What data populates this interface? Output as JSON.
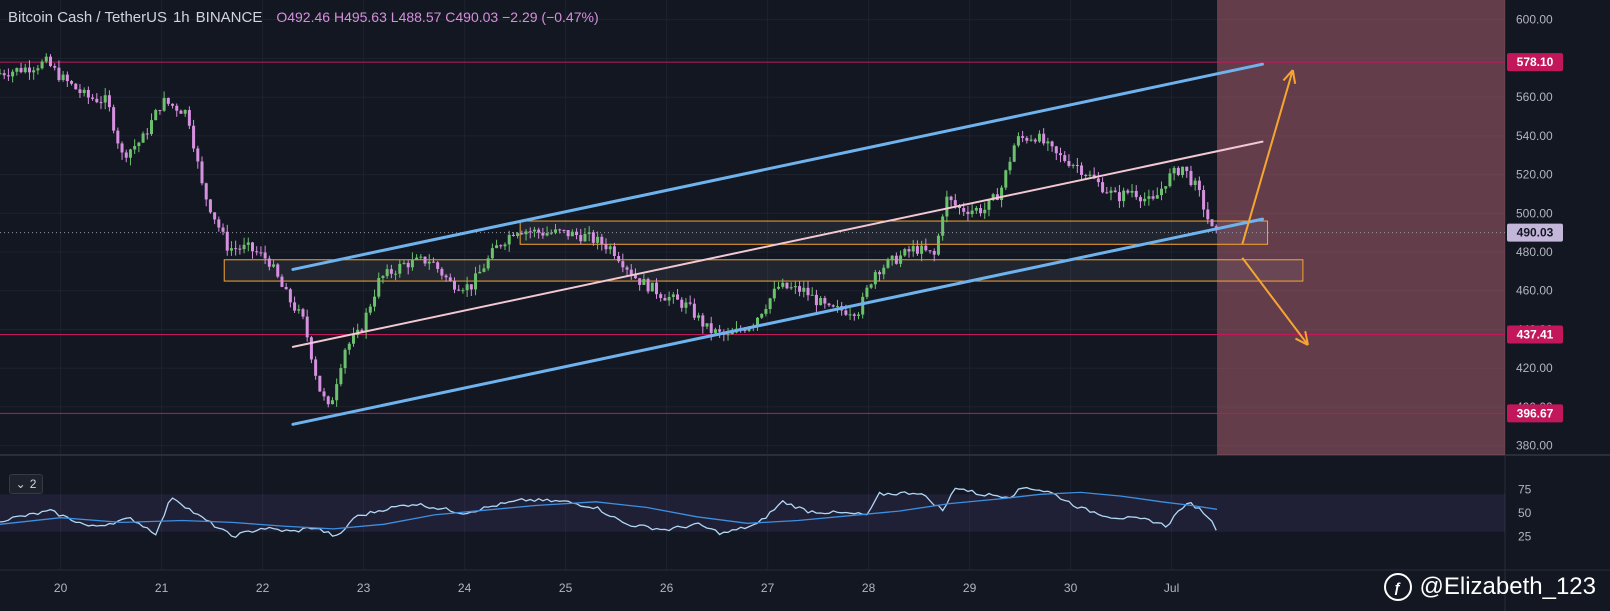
{
  "header": {
    "symbol": "Bitcoin Cash / TetherUS",
    "interval": "1h",
    "exchange": "BINANCE",
    "open": "O492.46",
    "high": "H495.63",
    "low": "L488.57",
    "close": "C490.03",
    "change": "−2.29 (−0.47%)"
  },
  "indicator_tag": {
    "label": "2"
  },
  "watermark": {
    "text": "@Elizabeth_123"
  },
  "colors": {
    "background": "#131722",
    "candle_up": "#6cc26c",
    "candle_down": "#d690e0",
    "channel": "#6fb3ee",
    "midline": "#f2c8d2",
    "levels": "#c2185b",
    "zone_border": "#f7a531",
    "arrows": "#f7a531",
    "highlight_zone": "#a85d6e",
    "rsi": "#b0d8f5",
    "rsi_ma": "#3d8fe0"
  },
  "chart_data": {
    "type": "candlestick",
    "ylim": [
      370,
      605
    ],
    "y_ticks": [
      "600.00",
      "580.00",
      "560.00",
      "540.00",
      "520.00",
      "500.00",
      "480.00",
      "460.00",
      "440.00",
      "420.00",
      "400.00",
      "380.00"
    ],
    "x_ticks": [
      "20",
      "21",
      "22",
      "23",
      "24",
      "25",
      "26",
      "27",
      "28",
      "29",
      "30",
      "Jul"
    ],
    "price_path": [
      [
        19.4,
        572
      ],
      [
        19.7,
        575
      ],
      [
        19.9,
        578
      ],
      [
        20.05,
        570
      ],
      [
        20.3,
        560
      ],
      [
        20.5,
        558
      ],
      [
        20.65,
        530
      ],
      [
        20.85,
        538
      ],
      [
        21.05,
        558
      ],
      [
        21.3,
        552
      ],
      [
        21.45,
        512
      ],
      [
        21.7,
        482
      ],
      [
        21.9,
        482
      ],
      [
        22.1,
        476
      ],
      [
        22.25,
        460
      ],
      [
        22.45,
        444
      ],
      [
        22.6,
        410
      ],
      [
        22.7,
        398
      ],
      [
        22.85,
        430
      ],
      [
        23.0,
        438
      ],
      [
        23.2,
        466
      ],
      [
        23.45,
        474
      ],
      [
        23.7,
        476
      ],
      [
        23.9,
        464
      ],
      [
        24.1,
        462
      ],
      [
        24.35,
        482
      ],
      [
        24.55,
        492
      ],
      [
        24.8,
        490
      ],
      [
        25.0,
        490
      ],
      [
        25.25,
        488
      ],
      [
        25.5,
        482
      ],
      [
        25.75,
        466
      ],
      [
        26.0,
        458
      ],
      [
        26.25,
        452
      ],
      [
        26.45,
        440
      ],
      [
        26.65,
        436
      ],
      [
        26.9,
        444
      ],
      [
        27.15,
        462
      ],
      [
        27.4,
        460
      ],
      [
        27.65,
        450
      ],
      [
        27.95,
        450
      ],
      [
        28.1,
        470
      ],
      [
        28.3,
        476
      ],
      [
        28.5,
        482
      ],
      [
        28.7,
        478
      ],
      [
        28.8,
        508
      ],
      [
        28.95,
        502
      ],
      [
        29.2,
        502
      ],
      [
        29.35,
        512
      ],
      [
        29.5,
        538
      ],
      [
        29.7,
        540
      ],
      [
        29.9,
        530
      ],
      [
        30.1,
        525
      ],
      [
        30.3,
        516
      ],
      [
        30.5,
        508
      ],
      [
        30.65,
        512
      ],
      [
        30.85,
        505
      ],
      [
        31.0,
        518
      ],
      [
        31.15,
        524
      ],
      [
        31.3,
        512
      ],
      [
        31.45,
        490
      ]
    ],
    "current_price": "490.03",
    "horizontal_levels": [
      "578.10",
      "437.41",
      "396.67"
    ],
    "price_labels": [
      "578.10",
      "490.03",
      "437.41",
      "396.67"
    ],
    "trend_channel": {
      "upper": [
        [
          22.3,
          471
        ],
        [
          31.9,
          577
        ]
      ],
      "lower": [
        [
          22.3,
          391
        ],
        [
          31.9,
          497
        ]
      ],
      "mid": [
        [
          22.3,
          431
        ],
        [
          31.9,
          537
        ]
      ]
    },
    "zones": [
      {
        "x": [
          24.55,
          31.95
        ],
        "y": [
          484,
          496
        ]
      },
      {
        "x": [
          21.62,
          32.3
        ],
        "y": [
          465,
          476
        ]
      }
    ],
    "highlight_region_start_x": 31.45,
    "projection_arrows": [
      {
        "from": [
          31.7,
          484
        ],
        "to": [
          32.2,
          574
        ]
      },
      {
        "from": [
          31.7,
          477
        ],
        "to": [
          32.35,
          432
        ]
      }
    ],
    "rsi": {
      "ylim": [
        18,
        82
      ],
      "ticks": [
        "75",
        "50",
        "25"
      ],
      "band": [
        70,
        30
      ],
      "path": [
        [
          19.4,
          42
        ],
        [
          19.9,
          52
        ],
        [
          20.3,
          35
        ],
        [
          20.7,
          44
        ],
        [
          20.95,
          28
        ],
        [
          21.1,
          68
        ],
        [
          21.35,
          48
        ],
        [
          21.7,
          25
        ],
        [
          22.0,
          34
        ],
        [
          22.3,
          30
        ],
        [
          22.5,
          35
        ],
        [
          22.75,
          24
        ],
        [
          22.9,
          45
        ],
        [
          23.2,
          54
        ],
        [
          23.5,
          60
        ],
        [
          24.0,
          50
        ],
        [
          24.3,
          58
        ],
        [
          24.6,
          64
        ],
        [
          25.0,
          62
        ],
        [
          25.3,
          56
        ],
        [
          25.6,
          38
        ],
        [
          26.0,
          32
        ],
        [
          26.3,
          38
        ],
        [
          26.55,
          28
        ],
        [
          26.9,
          38
        ],
        [
          27.15,
          62
        ],
        [
          27.4,
          52
        ],
        [
          27.7,
          50
        ],
        [
          28.0,
          48
        ],
        [
          28.1,
          70
        ],
        [
          28.5,
          72
        ],
        [
          28.75,
          52
        ],
        [
          28.85,
          78
        ],
        [
          29.1,
          70
        ],
        [
          29.4,
          68
        ],
        [
          29.55,
          78
        ],
        [
          29.8,
          72
        ],
        [
          30.1,
          55
        ],
        [
          30.4,
          46
        ],
        [
          30.6,
          44
        ],
        [
          30.8,
          42
        ],
        [
          30.95,
          36
        ],
        [
          31.1,
          56
        ],
        [
          31.2,
          60
        ],
        [
          31.35,
          48
        ],
        [
          31.45,
          32
        ]
      ],
      "ma_path": [
        [
          19.4,
          38
        ],
        [
          20.0,
          45
        ],
        [
          20.6,
          40
        ],
        [
          21.2,
          42
        ],
        [
          21.7,
          40
        ],
        [
          22.2,
          36
        ],
        [
          22.7,
          33
        ],
        [
          23.2,
          38
        ],
        [
          23.7,
          48
        ],
        [
          24.2,
          53
        ],
        [
          24.7,
          58
        ],
        [
          25.3,
          62
        ],
        [
          25.8,
          56
        ],
        [
          26.3,
          46
        ],
        [
          26.8,
          39
        ],
        [
          27.3,
          42
        ],
        [
          27.8,
          47
        ],
        [
          28.3,
          52
        ],
        [
          28.8,
          60
        ],
        [
          29.3,
          65
        ],
        [
          29.7,
          70
        ],
        [
          30.1,
          72
        ],
        [
          30.5,
          68
        ],
        [
          30.9,
          62
        ],
        [
          31.2,
          58
        ],
        [
          31.45,
          54
        ]
      ]
    }
  }
}
